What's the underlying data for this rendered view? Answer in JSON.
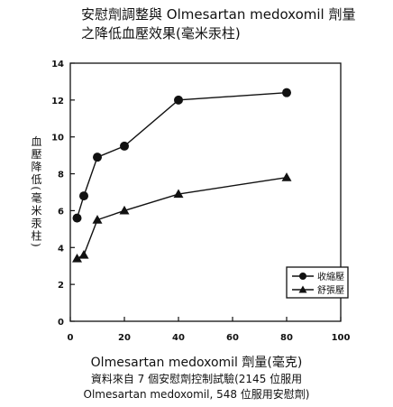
{
  "title_lines": [
    "安慰劑調整與 Olmesartan medoxomil 劑量",
    "之降低血壓效果(毫米汞柱)"
  ],
  "caption": {
    "xlabel": "Olmesartan medoxomil 劑量(毫克)",
    "note_lines": [
      "資料來自 7 個安慰劑控制試驗(2145 位服用",
      "Olmesartan medoxomil, 548 位服用安慰劑)"
    ]
  },
  "chart_data": {
    "type": "line",
    "title": "安慰劑調整與 Olmesartan medoxomil 劑量之降低血壓效果(毫米汞柱)",
    "xlabel": "Olmesartan medoxomil 劑量(毫克)",
    "ylabel": "血壓降低(毫米汞柱)",
    "xlim": [
      0,
      100
    ],
    "ylim": [
      0,
      14
    ],
    "xticks": [
      0,
      20,
      40,
      60,
      80,
      100
    ],
    "yticks": [
      0,
      2,
      4,
      6,
      8,
      10,
      12,
      14
    ],
    "grid": false,
    "legend_position": "bottom-right",
    "series": [
      {
        "name": "收縮壓",
        "marker": "circle",
        "x": [
          2.5,
          5,
          10,
          20,
          40,
          80
        ],
        "values": [
          5.6,
          6.8,
          8.9,
          9.5,
          12.0,
          12.4
        ]
      },
      {
        "name": "舒張壓",
        "marker": "triangle",
        "x": [
          2.5,
          5,
          10,
          20,
          40,
          80
        ],
        "values": [
          3.4,
          3.6,
          5.5,
          6.0,
          6.9,
          7.8
        ]
      }
    ],
    "colors": {
      "line": "#111111",
      "background": "#ffffff"
    }
  }
}
